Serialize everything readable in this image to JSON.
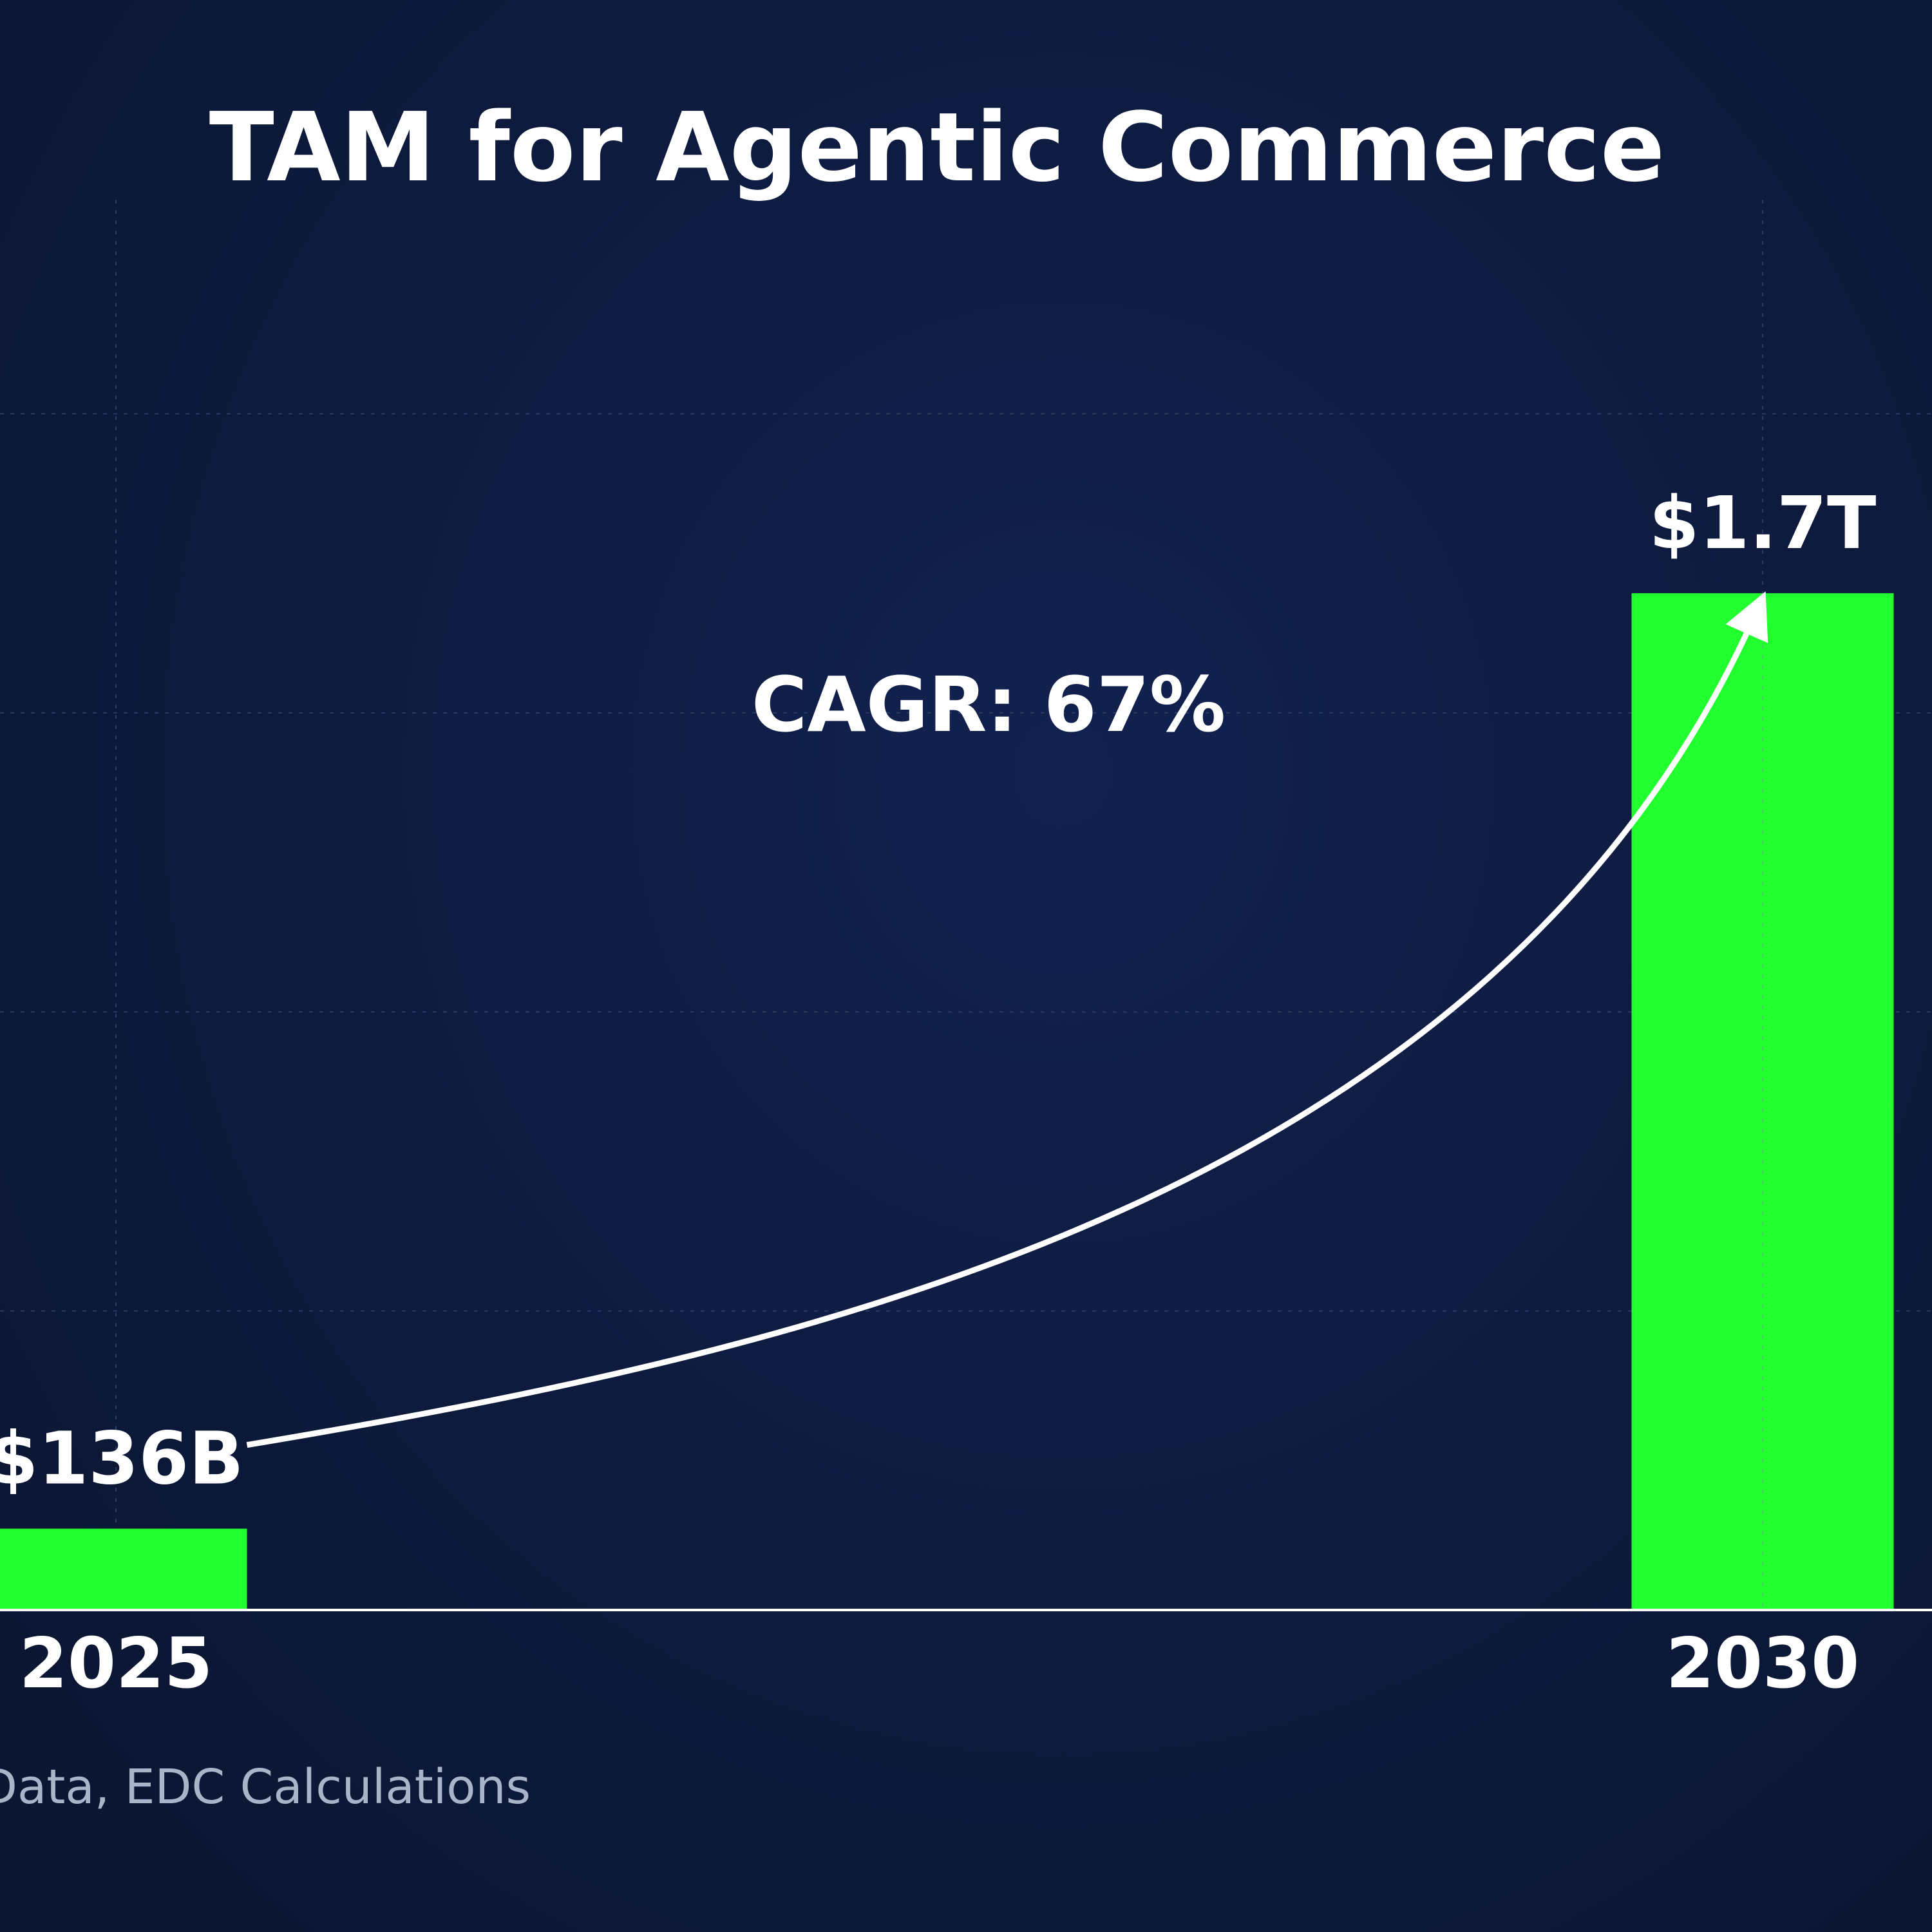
{
  "chart_data": {
    "type": "bar",
    "title": "TAM for Agentic Commerce",
    "categories": [
      "2025",
      "2030"
    ],
    "values": [
      136,
      1700
    ],
    "value_unit": "billion USD",
    "data_labels": [
      "$136B",
      "$1.7T"
    ],
    "annotation": "CAGR: 67%",
    "source_text": "Data, EDC Calculations",
    "xlabel": "",
    "ylabel": "",
    "ylim": [
      0,
      2000
    ],
    "grid": true,
    "legend": "none",
    "colors": {
      "bar": "#22ff2e",
      "background": "#0d1a3c",
      "text": "#ffffff",
      "source": "#aab4c8",
      "arrow": "#ffffff",
      "grid": "#2a3a60"
    }
  }
}
